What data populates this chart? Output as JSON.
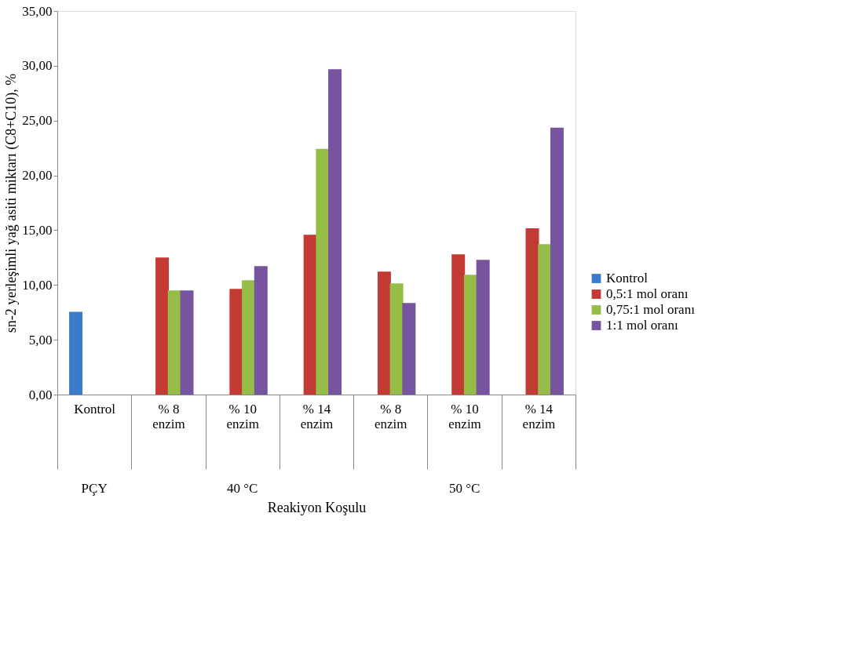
{
  "chart_data": {
    "type": "bar",
    "xlabel": "Reakiyon Koşulu",
    "ylabel": "sn-2 yerleşimli yağ asiti miktarı (C8+C10),  %",
    "categories": [
      "Kontrol",
      "% 8 enzim",
      "% 10 enzim",
      "% 14 enzim",
      "% 8 enzim",
      "% 10 enzim",
      "% 14 enzim"
    ],
    "annotations": [
      "PÇY",
      "40 °C",
      "50 °C"
    ],
    "series": [
      {
        "name": "Kontrol",
        "color": "#3a7cc9",
        "values": [
          7.56,
          null,
          null,
          null,
          null,
          null,
          null
        ]
      },
      {
        "name": "0,5:1 mol oranı",
        "color": "#c33a35",
        "values": [
          null,
          12.51,
          9.64,
          14.59,
          11.22,
          12.8,
          15.17
        ]
      },
      {
        "name": "0,75:1 mol oranı",
        "color": "#95bd47",
        "values": [
          null,
          9.5,
          10.43,
          22.42,
          10.14,
          10.93,
          13.73
        ]
      },
      {
        "name": "1:1 mol oranı",
        "color": "#7754a0",
        "values": [
          null,
          9.5,
          11.72,
          29.69,
          8.35,
          12.3,
          24.35
        ]
      }
    ],
    "ylim": [
      0,
      35
    ],
    "yticks": [
      {
        "value": 0,
        "label": "0,00"
      },
      {
        "value": 5,
        "label": "5,00"
      },
      {
        "value": 10,
        "label": "10,00"
      },
      {
        "value": 15,
        "label": "15,00"
      },
      {
        "value": 20,
        "label": "20,00"
      },
      {
        "value": 25,
        "label": "25,00"
      },
      {
        "value": 30,
        "label": "30,00"
      },
      {
        "value": 35,
        "label": "35,00"
      }
    ],
    "grid": false,
    "legend": "right"
  }
}
